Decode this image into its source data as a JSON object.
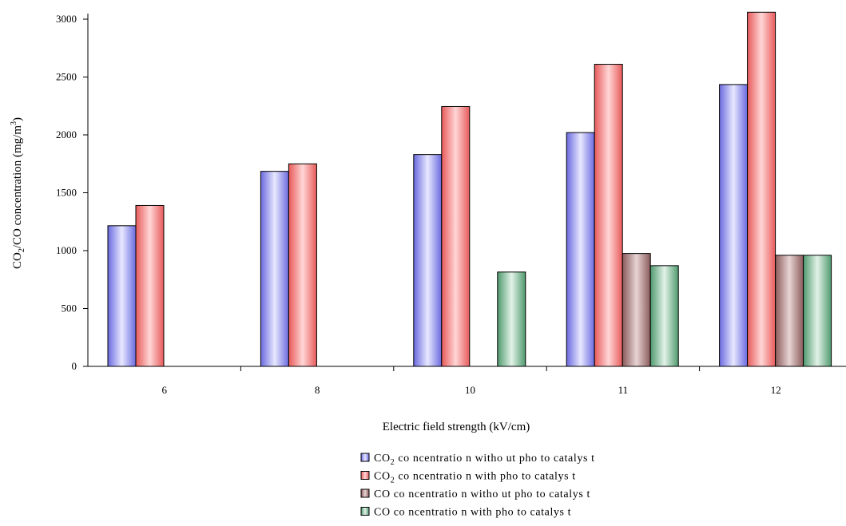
{
  "chart_data": {
    "type": "bar",
    "title": "",
    "xlabel": "Electric field strength (kV/cm)",
    "ylabel": "CO2/CO concentration (mg/m3)",
    "ylabel_parts": {
      "a": "CO",
      "sub": "2",
      "b": "/CO concentration  (mg/m",
      "sup": "3",
      "c": ")"
    },
    "categories": [
      "6",
      "8",
      "10",
      "11",
      "12"
    ],
    "ylim": [
      0,
      3000
    ],
    "yticks": [
      "0",
      "500",
      "1000",
      "1500",
      "2000",
      "2500",
      "3000"
    ],
    "ytick_values": [
      0,
      500,
      1000,
      1500,
      2000,
      2500,
      3000
    ],
    "grid": false,
    "legend_position": "bottom",
    "series": [
      {
        "name": "CO2 concentration without photocatalyst",
        "legend": {
          "a": "CO",
          "sub": "2",
          "b": " co ncentratio n witho ut pho to catalys t"
        },
        "color": "#8888ee",
        "values": [
          1215,
          1685,
          1830,
          2020,
          2435
        ]
      },
      {
        "name": "CO2 concentration with photocatalyst",
        "legend": {
          "a": "CO",
          "sub": "2",
          "b": " co ncentratio n with pho to catalys t"
        },
        "color": "#ee7777",
        "values": [
          1390,
          1750,
          2245,
          2610,
          3060
        ]
      },
      {
        "name": "CO concentration without photocatalyst",
        "legend": {
          "a": "CO co ncentratio n witho ut pho to catalys t",
          "sub": "",
          "b": ""
        },
        "color": "#a88080",
        "values": [
          0,
          0,
          0,
          975,
          960
        ]
      },
      {
        "name": "CO concentration with photocatalyst",
        "legend": {
          "a": "CO co ncentratio n with pho to catalys t",
          "sub": "",
          "b": ""
        },
        "color": "#88bb99",
        "values": [
          0,
          0,
          815,
          870,
          960
        ]
      }
    ]
  }
}
